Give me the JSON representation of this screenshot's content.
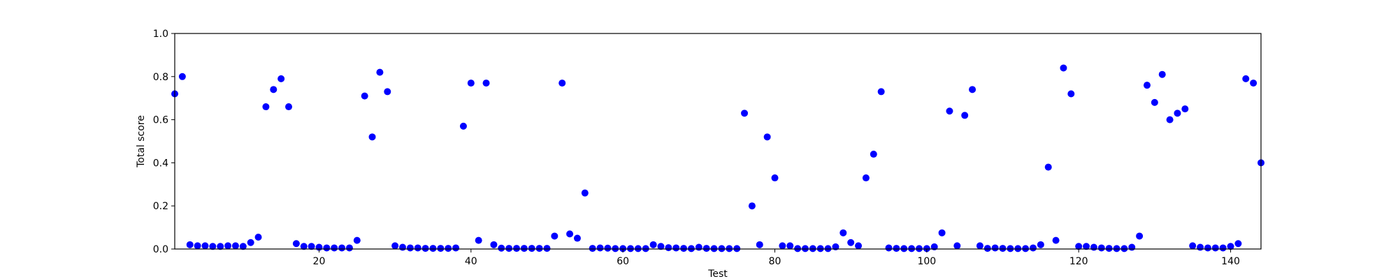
{
  "chart_data": {
    "type": "scatter",
    "title": "",
    "xlabel": "Test",
    "ylabel": "Total score",
    "xlim": [
      1,
      144
    ],
    "ylim": [
      0,
      1.0
    ],
    "xticks": [
      20,
      40,
      60,
      80,
      100,
      120,
      140
    ],
    "yticks": [
      0.0,
      0.2,
      0.4,
      0.6,
      0.8,
      1.0
    ],
    "xtick_labels": [
      "20",
      "40",
      "60",
      "80",
      "100",
      "120",
      "140"
    ],
    "ytick_labels": [
      "0.0",
      "0.2",
      "0.4",
      "0.6",
      "0.8",
      "1.0"
    ],
    "grid": false,
    "marker_color": "#0000ff",
    "x": [
      1,
      2,
      3,
      4,
      5,
      6,
      7,
      8,
      9,
      10,
      11,
      12,
      13,
      14,
      15,
      16,
      17,
      18,
      19,
      20,
      21,
      22,
      23,
      24,
      25,
      26,
      27,
      28,
      29,
      30,
      31,
      32,
      33,
      34,
      35,
      36,
      37,
      38,
      39,
      40,
      41,
      42,
      43,
      44,
      45,
      46,
      47,
      48,
      49,
      50,
      51,
      52,
      53,
      54,
      55,
      56,
      57,
      58,
      59,
      60,
      61,
      62,
      63,
      64,
      65,
      66,
      67,
      68,
      69,
      70,
      71,
      72,
      73,
      74,
      75,
      76,
      77,
      78,
      79,
      80,
      81,
      82,
      83,
      84,
      85,
      86,
      87,
      88,
      89,
      90,
      91,
      92,
      93,
      94,
      95,
      96,
      97,
      98,
      99,
      100,
      101,
      102,
      103,
      104,
      105,
      106,
      107,
      108,
      109,
      110,
      111,
      112,
      113,
      114,
      115,
      116,
      117,
      118,
      119,
      120,
      121,
      122,
      123,
      124,
      125,
      126,
      127,
      128,
      129,
      130,
      131,
      132,
      133,
      134,
      135,
      136,
      137,
      138,
      139,
      140,
      141,
      142,
      143,
      144
    ],
    "y": [
      0.72,
      0.8,
      0.02,
      0.015,
      0.015,
      0.012,
      0.012,
      0.015,
      0.015,
      0.012,
      0.03,
      0.055,
      0.66,
      0.74,
      0.79,
      0.66,
      0.025,
      0.012,
      0.012,
      0.008,
      0.005,
      0.005,
      0.005,
      0.005,
      0.04,
      0.71,
      0.52,
      0.82,
      0.73,
      0.015,
      0.008,
      0.005,
      0.005,
      0.003,
      0.003,
      0.003,
      0.003,
      0.005,
      0.57,
      0.77,
      0.04,
      0.77,
      0.02,
      0.004,
      0.003,
      0.003,
      0.003,
      0.003,
      0.003,
      0.003,
      0.06,
      0.77,
      0.07,
      0.05,
      0.26,
      0.003,
      0.005,
      0.004,
      0.002,
      0.002,
      0.002,
      0.002,
      0.002,
      0.02,
      0.012,
      0.006,
      0.005,
      0.003,
      0.002,
      0.008,
      0.003,
      0.002,
      0.002,
      0.002,
      0.002,
      0.63,
      0.2,
      0.02,
      0.52,
      0.33,
      0.015,
      0.015,
      0.002,
      0.002,
      0.002,
      0.002,
      0.002,
      0.01,
      0.075,
      0.03,
      0.015,
      0.33,
      0.44,
      0.73,
      0.005,
      0.003,
      0.002,
      0.002,
      0.002,
      0.002,
      0.01,
      0.075,
      0.64,
      0.015,
      0.62,
      0.74,
      0.015,
      0.003,
      0.005,
      0.003,
      0.002,
      0.002,
      0.002,
      0.005,
      0.02,
      0.38,
      0.04,
      0.84,
      0.72,
      0.012,
      0.012,
      0.008,
      0.005,
      0.003,
      0.002,
      0.002,
      0.008,
      0.06,
      0.76,
      0.68,
      0.81,
      0.6,
      0.63,
      0.65,
      0.015,
      0.008,
      0.005,
      0.005,
      0.005,
      0.012,
      0.025,
      0.79,
      0.77,
      0.4
    ]
  }
}
